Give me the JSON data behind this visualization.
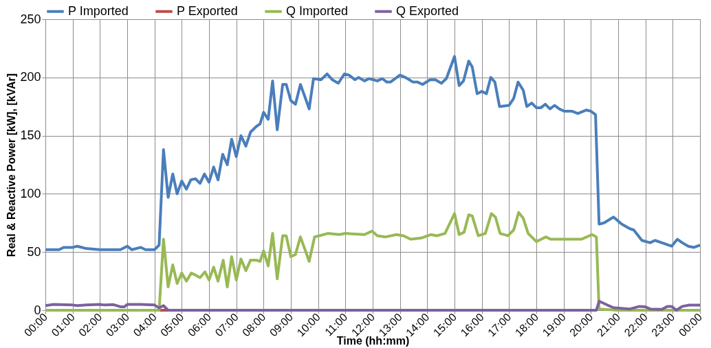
{
  "chart_data": {
    "type": "line",
    "xlabel": "Time (hh:mm)",
    "ylabel": "Real & Reactive Power [kW], [kVAr]",
    "xlim": [
      0,
      24
    ],
    "xticks": [
      {
        "value": 0,
        "label": "00:00"
      },
      {
        "value": 1,
        "label": "01:00"
      },
      {
        "value": 2,
        "label": "02:00"
      },
      {
        "value": 3,
        "label": "03:00"
      },
      {
        "value": 4,
        "label": "04:00"
      },
      {
        "value": 5,
        "label": "05:00"
      },
      {
        "value": 6,
        "label": "06:00"
      },
      {
        "value": 7,
        "label": "07:00"
      },
      {
        "value": 8,
        "label": "08:00"
      },
      {
        "value": 9,
        "label": "09:00"
      },
      {
        "value": 10,
        "label": "10:00"
      },
      {
        "value": 11,
        "label": "11:00"
      },
      {
        "value": 12,
        "label": "12:00"
      },
      {
        "value": 13,
        "label": "13:00"
      },
      {
        "value": 14,
        "label": "14:00"
      },
      {
        "value": 15,
        "label": "15:00"
      },
      {
        "value": 16,
        "label": "16:00"
      },
      {
        "value": 17,
        "label": "17:00"
      },
      {
        "value": 18,
        "label": "18:00"
      },
      {
        "value": 19,
        "label": "19:00"
      },
      {
        "value": 20,
        "label": "20:00"
      },
      {
        "value": 21,
        "label": "21:00"
      },
      {
        "value": 22,
        "label": "22:00"
      },
      {
        "value": 23,
        "label": "23:00"
      },
      {
        "value": 24,
        "label": "00:00"
      }
    ],
    "ylim": [
      0,
      250
    ],
    "yticks": [
      0,
      50,
      100,
      150,
      200,
      250
    ],
    "grid": true,
    "legend": "top",
    "marker": "none",
    "line_style": "solid",
    "series": [
      {
        "name": "P Imported",
        "color": "#4a7ebb",
        "x": [
          0,
          0.5,
          0.67,
          1,
          1.17,
          1.5,
          2,
          2.5,
          2.75,
          3,
          3.17,
          3.5,
          3.67,
          4,
          4.17,
          4.33,
          4.5,
          4.67,
          4.83,
          5,
          5.17,
          5.33,
          5.5,
          5.67,
          5.83,
          6,
          6.17,
          6.33,
          6.5,
          6.67,
          6.83,
          7,
          7.17,
          7.35,
          7.52,
          7.74,
          7.87,
          8,
          8.17,
          8.33,
          8.5,
          8.7,
          8.83,
          9,
          9.17,
          9.35,
          9.52,
          9.67,
          9.83,
          10.1,
          10.33,
          10.52,
          10.74,
          10.96,
          11.13,
          11.35,
          11.48,
          11.7,
          11.87,
          12.17,
          12.35,
          12.52,
          12.65,
          13,
          13.2,
          13.48,
          13.65,
          13.83,
          14.1,
          14.3,
          14.52,
          14.7,
          15,
          15.17,
          15.33,
          15.52,
          15.65,
          15.83,
          16,
          16.17,
          16.33,
          16.48,
          16.65,
          17,
          17.17,
          17.33,
          17.52,
          17.65,
          17.83,
          18,
          18.17,
          18.33,
          18.5,
          18.67,
          18.84,
          19.02,
          19.3,
          19.52,
          19.83,
          20,
          20.17,
          20.3,
          20.48,
          20.83,
          21.13,
          21.43,
          21.57,
          21.87,
          22.17,
          22.35,
          22.6,
          22.96,
          23.17,
          23.35,
          23.57,
          23.78,
          24
        ],
        "values": [
          52,
          52,
          54,
          54,
          55,
          53,
          52,
          52,
          52,
          55,
          52,
          54,
          52,
          52,
          56,
          138,
          97,
          117,
          100,
          111,
          104,
          112,
          113,
          109,
          117,
          110,
          123,
          112,
          134,
          125,
          147,
          132,
          150,
          141,
          153,
          158,
          160,
          170,
          164,
          197,
          155,
          194,
          194,
          180,
          177,
          194,
          183,
          173,
          199,
          198,
          203,
          198,
          195,
          203,
          202,
          198,
          200,
          197,
          199,
          197,
          199,
          196,
          196,
          202,
          200,
          196,
          196,
          194,
          198,
          198,
          195,
          199,
          218,
          193,
          197,
          214,
          209,
          186,
          188,
          186,
          200,
          196,
          175,
          176,
          182,
          196,
          189,
          175,
          178,
          174,
          174,
          177,
          173,
          176,
          173,
          171,
          171,
          169,
          172,
          171,
          168,
          74,
          75,
          80,
          74,
          70,
          69,
          60,
          58,
          60,
          58,
          55,
          61,
          58,
          55,
          54,
          56
        ]
      },
      {
        "name": "P Exported",
        "color": "#be4b48",
        "x": [
          4.17,
          4.5
        ],
        "values": [
          0,
          0
        ]
      },
      {
        "name": "Q Imported",
        "color": "#98b954",
        "x": [
          0,
          4.17,
          4.33,
          4.5,
          4.67,
          4.83,
          5,
          5.17,
          5.35,
          5.52,
          5.67,
          5.85,
          6,
          6.17,
          6.33,
          6.52,
          6.67,
          6.83,
          7,
          7.17,
          7.35,
          7.52,
          7.74,
          7.87,
          8,
          8.17,
          8.33,
          8.5,
          8.7,
          8.83,
          9,
          9.17,
          9.35,
          9.52,
          9.67,
          9.87,
          10.04,
          10.35,
          10.78,
          11,
          11.7,
          11.98,
          12.17,
          12.48,
          12.87,
          13.13,
          13.39,
          13.78,
          14.13,
          14.35,
          14.65,
          15,
          15.17,
          15.35,
          15.52,
          15.65,
          15.87,
          16.13,
          16.35,
          16.5,
          16.67,
          16.96,
          17.17,
          17.35,
          17.52,
          17.7,
          18,
          18.35,
          18.52,
          19.3,
          19.65,
          20.04,
          20.2,
          20.3,
          21,
          22,
          23,
          24
        ],
        "values": [
          0,
          0,
          61,
          20,
          39,
          23,
          32,
          25,
          32,
          30,
          28,
          33,
          26,
          37,
          25,
          43,
          20,
          46,
          26,
          44,
          34,
          43,
          43,
          42,
          51,
          38,
          66,
          27,
          64,
          64,
          46,
          48,
          63,
          52,
          42,
          63,
          64,
          66,
          65,
          66,
          65,
          68,
          64,
          63,
          65,
          64,
          61,
          62,
          65,
          64,
          66,
          83,
          65,
          67,
          82,
          81,
          64,
          66,
          83,
          80,
          66,
          64,
          69,
          84,
          79,
          66,
          59,
          63,
          61,
          61,
          61,
          65,
          63,
          1,
          0,
          0,
          0,
          0
        ]
      },
      {
        "name": "Q Exported",
        "color": "#7d60a0",
        "x": [
          0,
          0.3,
          1,
          1.17,
          1.5,
          2,
          2.17,
          2.5,
          2.75,
          2.9,
          3,
          3.5,
          4,
          4.17,
          4.33,
          4.5,
          20.2,
          20.3,
          20.61,
          20.83,
          21.43,
          21.78,
          22,
          22.17,
          22.6,
          22.8,
          22.96,
          23.13,
          23.35,
          23.6,
          24
        ],
        "values": [
          4,
          5,
          4.5,
          4,
          4.5,
          5,
          4.5,
          4.8,
          3,
          3,
          5,
          5,
          4.5,
          2,
          4,
          0,
          0,
          7.8,
          4.4,
          2.2,
          1.1,
          3.3,
          2.9,
          1.1,
          0.7,
          3.3,
          3.3,
          0,
          3.3,
          4.4,
          4.4
        ]
      }
    ]
  }
}
